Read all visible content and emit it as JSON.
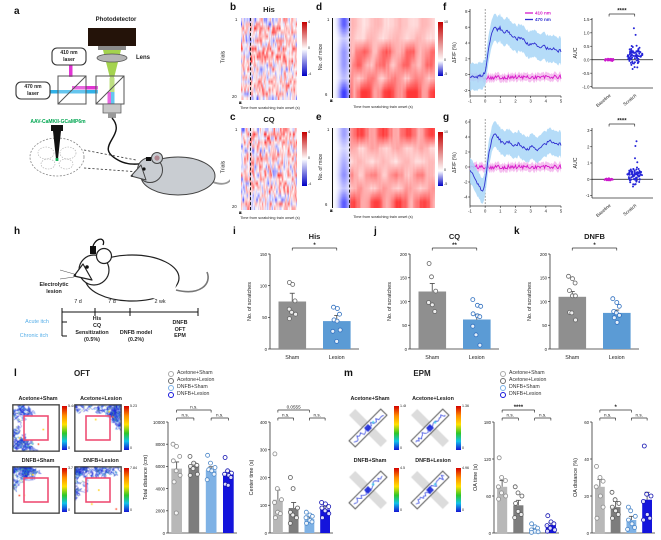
{
  "panels": {
    "a": "a",
    "b": "b",
    "c": "c",
    "d": "d",
    "e": "e",
    "f": "f",
    "g": "g",
    "h": "h",
    "i": "i",
    "j": "j",
    "k": "k",
    "l": "l",
    "m": "m"
  },
  "panel_a": {
    "photodetector": "Photodetector",
    "lens": "Lens",
    "laser410": "410 nm\nlaser",
    "laser470": "470 nm\nlaser",
    "virus": "AAV-CaMKII-GCaMP6m"
  },
  "panel_h": {
    "lesion_label": "Electrolytic\nlesion",
    "seg1": "7 d",
    "seg2": "7 d",
    "seg3": "2 wk",
    "acute": "Acute itch",
    "chronic": "Chronic itch",
    "acute_treatments": "His\nCQ",
    "sensitization": "Sensitization\n(0.5%)",
    "dnfb_model": "DNFB model\n(0.2%)",
    "endpoint": "DNFB\nOFT\nEPM"
  },
  "section_titles": {
    "oft": "OFT",
    "epm": "EPM"
  },
  "legend_groups": [
    {
      "label": "Acetone+Sham",
      "color": "#a9a9a9"
    },
    {
      "label": "Acetone+Lesion",
      "color": "#6f6f6f"
    },
    {
      "label": "DNFB+Sham",
      "color": "#79b1e8"
    },
    {
      "label": "DNFB+Lesion",
      "color": "#1616dc"
    }
  ],
  "track_images": {
    "oft": {
      "labels": [
        "Acetone+Sham",
        "Acetone+Lesion",
        "DNFB+Sham",
        "DNFB+Lesion"
      ],
      "cb_max": [
        "5.44",
        "5.23",
        "3.7",
        "7.84"
      ],
      "cb_min": "0"
    },
    "epm": {
      "labels": [
        "Acetone+Sham",
        "Acetone+Lesion",
        "DNFB+Sham",
        "DNFB+Lesion"
      ],
      "cb_max": [
        "1.46",
        "1.36",
        "4.5",
        "4.96"
      ],
      "cb_min": "0"
    }
  },
  "chart_data": [
    {
      "id": "panel_b",
      "type": "heatmap",
      "subtype": "trials",
      "title": "His",
      "rows": 20,
      "cols": 90,
      "seed": 7,
      "ylabel": "Trials",
      "ytick_top": "1",
      "ytick_bottom": "20",
      "xticks": [
        -1,
        0,
        1,
        2,
        3,
        4,
        5
      ],
      "xlabel": "Time from scratching train onset (s)",
      "colorbar": {
        "max": "4",
        "mid": "0",
        "min": "-4"
      }
    },
    {
      "id": "panel_c",
      "type": "heatmap",
      "subtype": "trials",
      "title": "CQ",
      "rows": 20,
      "cols": 90,
      "seed": 13,
      "ylabel": "Trials",
      "ytick_top": "1",
      "ytick_bottom": "20",
      "xticks": [
        -1,
        0,
        1,
        2,
        3,
        4,
        5
      ],
      "xlabel": "Time from scratching train onset (s)",
      "colorbar": {
        "max": "4",
        "mid": "0",
        "min": "-4"
      }
    },
    {
      "id": "panel_d",
      "type": "heatmap",
      "subtype": "mice",
      "rows": 6,
      "cols": 60,
      "seed": 3,
      "ylabel": "No. of mice",
      "ytick_top": "1",
      "ytick_bottom": "6",
      "xticks": [
        -1,
        0,
        1,
        2,
        3,
        4,
        5
      ],
      "xlabel": "Time from scratching train onset (s)",
      "colorbar": {
        "max": "10",
        "mid": "0",
        "min": "-5"
      }
    },
    {
      "id": "panel_e",
      "type": "heatmap",
      "subtype": "mice",
      "rows": 6,
      "cols": 60,
      "seed": 9,
      "ylabel": "No. of mice",
      "ytick_top": "1",
      "ytick_bottom": "6",
      "xticks": [
        -1,
        0,
        1,
        2,
        3,
        4,
        5
      ],
      "xlabel": "Time from scratching train onset (s)",
      "colorbar": {
        "max": "10",
        "mid": "0",
        "min": "-5"
      }
    },
    {
      "id": "panel_f_trace",
      "type": "line",
      "ylabel": "ΔF/F (%)",
      "xlim": [
        -1,
        5
      ],
      "ylim": [
        -2.7,
        8.3
      ],
      "yticks": [
        -2,
        0,
        2,
        4,
        6,
        8
      ],
      "xticks": [
        -1,
        0,
        1,
        2,
        3,
        4,
        5
      ],
      "legend": true,
      "vline": 0,
      "series": [
        {
          "name": "410 nm",
          "color": "#d619c9",
          "band": "#f3b4ec",
          "band_w": 0.5,
          "noise": 0.5,
          "keypoints": [
            [
              -1,
              -0.35
            ],
            [
              5,
              -0.3
            ]
          ]
        },
        {
          "name": "470 nm",
          "color": "#2f2fd0",
          "band": "#a8d6f7",
          "band_w": 1.7,
          "noise": 0.38,
          "keypoints": [
            [
              -1,
              -0.3
            ],
            [
              -0.5,
              -0.25
            ],
            [
              -0.2,
              -0.1
            ],
            [
              0,
              0.3
            ],
            [
              0.2,
              2.8
            ],
            [
              0.4,
              5.2
            ],
            [
              0.6,
              6.0
            ],
            [
              0.8,
              5.7
            ],
            [
              1.0,
              5.9
            ],
            [
              1.2,
              5.3
            ],
            [
              1.5,
              5.5
            ],
            [
              1.8,
              4.9
            ],
            [
              2.1,
              4.5
            ],
            [
              2.4,
              4.7
            ],
            [
              2.7,
              4.1
            ],
            [
              3.0,
              3.7
            ],
            [
              3.3,
              3.9
            ],
            [
              3.6,
              3.4
            ],
            [
              3.9,
              3.6
            ],
            [
              4.2,
              3.1
            ],
            [
              4.5,
              3.4
            ],
            [
              4.8,
              3.0
            ],
            [
              5,
              3.0
            ]
          ]
        }
      ]
    },
    {
      "id": "panel_f_auc",
      "type": "cat_scatter",
      "ylabel": "AUC",
      "ylim": [
        -1.05,
        1.55
      ],
      "yticks": [
        "-1.0",
        "-0.5",
        "0.0",
        "0.5",
        "1.0",
        "1.5"
      ],
      "categories": [
        "Baseline",
        "Scratch"
      ],
      "sig": "****",
      "baseline_sd": 0.035,
      "center": 0.18,
      "sd": 0.2,
      "tail": 1.05,
      "neg": 0.55,
      "seed": 11,
      "colors": {
        "baseline": "#cc18cc",
        "scratch": "#2424d8"
      }
    },
    {
      "id": "panel_g_trace",
      "type": "line",
      "ylabel": "ΔF/F (%)",
      "xlim": [
        -1,
        5
      ],
      "ylim": [
        -5.2,
        6.4
      ],
      "yticks": [
        -4,
        -2,
        0,
        2,
        4,
        6
      ],
      "xticks": [
        -1,
        0,
        1,
        2,
        3,
        4,
        5
      ],
      "legend": false,
      "vline": 0,
      "series": [
        {
          "name": "410 nm",
          "color": "#d619c9",
          "band": "#f3b4ec",
          "band_w": 0.55,
          "noise": 0.55,
          "keypoints": [
            [
              -1,
              0
            ],
            [
              5,
              0
            ]
          ]
        },
        {
          "name": "470 nm",
          "color": "#2f2fd0",
          "band": "#a8d6f7",
          "band_w": 1.7,
          "noise": 0.38,
          "keypoints": [
            [
              -1,
              -0.4
            ],
            [
              -0.7,
              -1.4
            ],
            [
              -0.45,
              -2.4
            ],
            [
              -0.25,
              -3.1
            ],
            [
              -0.1,
              -3.0
            ],
            [
              0.05,
              -1.2
            ],
            [
              0.25,
              1.8
            ],
            [
              0.45,
              3.9
            ],
            [
              0.6,
              4.4
            ],
            [
              0.8,
              4.1
            ],
            [
              1.0,
              3.5
            ],
            [
              1.3,
              3.1
            ],
            [
              1.6,
              3.4
            ],
            [
              1.9,
              2.8
            ],
            [
              2.2,
              3.1
            ],
            [
              2.5,
              2.6
            ],
            [
              2.8,
              2.4
            ],
            [
              3.1,
              2.7
            ],
            [
              3.4,
              2.2
            ],
            [
              3.7,
              2.7
            ],
            [
              4.0,
              3.1
            ],
            [
              4.3,
              3.5
            ],
            [
              4.6,
              3.2
            ],
            [
              5,
              3.0
            ]
          ]
        }
      ]
    },
    {
      "id": "panel_g_auc",
      "type": "cat_scatter",
      "ylabel": "AUC",
      "ylim": [
        -1.15,
        3.15
      ],
      "yticks": [
        "-1",
        "0",
        "1",
        "2",
        "3"
      ],
      "categories": [
        "Baseline",
        "Scratch"
      ],
      "sig": "****",
      "baseline_sd": 0.05,
      "center": 0.25,
      "sd": 0.28,
      "tail": 2.3,
      "neg": 0.45,
      "seed": 29,
      "colors": {
        "baseline": "#cc18cc",
        "scratch": "#2424d8"
      }
    },
    {
      "id": "panel_i",
      "type": "bar",
      "title": "His",
      "ylabel": "No. of scratches",
      "ylim": [
        0,
        150
      ],
      "yticks": [
        0,
        50,
        100,
        150
      ],
      "categories": [
        "Sham",
        "Lesion"
      ],
      "xcats": true,
      "seed": 5,
      "values": [
        75,
        44
      ],
      "sem": [
        13,
        9
      ],
      "points": [
        [
          105,
          102,
          76,
          63,
          58,
          55,
          48
        ],
        [
          66,
          64,
          55,
          46,
          44,
          30,
          28,
          12
        ]
      ],
      "colors": [
        "#8f8f8f",
        "#5b9bd5"
      ],
      "point_colors": [
        "#666666",
        "#2f6fbf"
      ],
      "sig": [
        {
          "a": 0,
          "b": 1,
          "label": "*",
          "y": 18
        }
      ]
    },
    {
      "id": "panel_j",
      "type": "bar",
      "title": "CQ",
      "ylabel": "No. of scratches",
      "ylim": [
        0,
        200
      ],
      "yticks": [
        0,
        50,
        100,
        150,
        200
      ],
      "categories": [
        "Sham",
        "Lesion"
      ],
      "xcats": true,
      "seed": 6,
      "values": [
        121,
        62
      ],
      "sem": [
        17,
        11
      ],
      "points": [
        [
          180,
          152,
          122,
          98,
          93,
          79
        ],
        [
          104,
          92,
          90,
          74,
          70,
          68,
          48,
          30,
          8
        ]
      ],
      "colors": [
        "#8f8f8f",
        "#5b9bd5"
      ],
      "point_colors": [
        "#666666",
        "#2f6fbf"
      ],
      "sig": [
        {
          "a": 0,
          "b": 1,
          "label": "**",
          "y": 18
        }
      ]
    },
    {
      "id": "panel_k",
      "type": "bar",
      "title": "DNFB",
      "ylabel": "No. of scratches",
      "ylim": [
        0,
        200
      ],
      "yticks": [
        0,
        50,
        100,
        150,
        200
      ],
      "categories": [
        "Sham",
        "Lesion"
      ],
      "xcats": true,
      "seed": 8,
      "values": [
        110,
        76
      ],
      "sem": [
        11,
        6
      ],
      "points": [
        [
          153,
          148,
          139,
          123,
          112,
          112,
          77,
          76,
          61
        ],
        [
          106,
          98,
          90,
          79,
          76,
          71,
          66,
          56
        ]
      ],
      "colors": [
        "#8f8f8f",
        "#5b9bd5"
      ],
      "point_colors": [
        "#666666",
        "#2f6fbf"
      ],
      "sig": [
        {
          "a": 0,
          "b": 1,
          "label": "*",
          "y": 18
        }
      ]
    },
    {
      "id": "panel_l_total",
      "type": "bar",
      "ylabel": "Total distance (cm)",
      "ylim": [
        0,
        10000
      ],
      "yticks": [
        0,
        2000,
        4000,
        6000,
        8000,
        10000
      ],
      "xcats": false,
      "seed": 15,
      "values": [
        5800,
        6050,
        5650,
        5300
      ],
      "sem": [
        600,
        280,
        320,
        300
      ],
      "points": [
        [
          8000,
          7800,
          6900,
          6500,
          5600,
          5200,
          4600,
          1800
        ],
        [
          6900,
          6300,
          6100,
          6000,
          5800,
          5300,
          5200
        ],
        [
          7000,
          6300,
          5900,
          5700,
          5600,
          5300,
          4800
        ],
        [
          6800,
          5600,
          5400,
          5300,
          5200,
          5000,
          4400,
          4300
        ]
      ],
      "colors": [
        "#b8b8b8",
        "#7d7d7d",
        "#7fb2e5",
        "#1414dc"
      ],
      "point_colors": [
        "#8a8a8a",
        "#5a5a5a",
        "#4a86c8",
        "#0f0fb0"
      ],
      "sig": [
        {
          "a": 0,
          "b": 1,
          "label": "n.s.",
          "y": 16
        },
        {
          "a": 0,
          "b": 2,
          "label": "n.s.",
          "y": 8
        },
        {
          "a": 2,
          "b": 3,
          "label": "n.s.",
          "y": 16
        }
      ]
    },
    {
      "id": "panel_l_center",
      "type": "bar",
      "ylabel": "Center time (s)",
      "ylim": [
        0,
        400
      ],
      "yticks": [
        0,
        100,
        200,
        300,
        400
      ],
      "xcats": false,
      "seed": 16,
      "values": [
        120,
        90,
        50,
        85
      ],
      "sem": [
        35,
        20,
        8,
        12
      ],
      "points": [
        [
          285,
          160,
          120,
          110,
          75,
          70,
          55
        ],
        [
          200,
          160,
          90,
          75,
          65,
          55,
          35
        ],
        [
          75,
          65,
          60,
          55,
          45,
          40,
          35
        ],
        [
          110,
          105,
          95,
          90,
          80,
          70,
          55
        ]
      ],
      "colors": [
        "#b8b8b8",
        "#7d7d7d",
        "#7fb2e5",
        "#1414dc"
      ],
      "point_colors": [
        "#8a8a8a",
        "#5a5a5a",
        "#4a86c8",
        "#0f0fb0"
      ],
      "sig": [
        {
          "a": 0,
          "b": 1,
          "label": "n.s.",
          "y": 16
        },
        {
          "a": 0,
          "b": 2,
          "label": "0.0555",
          "y": 8
        },
        {
          "a": 2,
          "b": 3,
          "label": "n.s.",
          "y": 16
        }
      ]
    },
    {
      "id": "panel_m_oatime",
      "type": "bar",
      "ylabel": "OA time (s)",
      "ylim": [
        0,
        180
      ],
      "yticks": [
        0,
        60,
        120,
        180
      ],
      "xcats": false,
      "seed": 17,
      "values": [
        75,
        45,
        5,
        13
      ],
      "sem": [
        10,
        8,
        2,
        4
      ],
      "points": [
        [
          122,
          90,
          85,
          75,
          65,
          60,
          55
        ],
        [
          75,
          65,
          60,
          48,
          35,
          30,
          25
        ],
        [
          15,
          10,
          8,
          5,
          3,
          2,
          1
        ],
        [
          28,
          18,
          15,
          12,
          8,
          5,
          3
        ]
      ],
      "colors": [
        "#b8b8b8",
        "#7d7d7d",
        "#7fb2e5",
        "#1414dc"
      ],
      "point_colors": [
        "#8a8a8a",
        "#5a5a5a",
        "#4a86c8",
        "#0f0fb0"
      ],
      "sig": [
        {
          "a": 0,
          "b": 1,
          "label": "n.s.",
          "y": 16
        },
        {
          "a": 0,
          "b": 2,
          "label": "****",
          "y": 8
        },
        {
          "a": 2,
          "b": 3,
          "label": "n.s.",
          "y": 16
        }
      ]
    },
    {
      "id": "panel_m_oadist",
      "type": "bar",
      "ylabel": "OA distance (%)",
      "ylim": [
        0,
        60
      ],
      "yticks": [
        0,
        20,
        40,
        60
      ],
      "xcats": false,
      "seed": 18,
      "values": [
        25,
        14,
        7,
        18
      ],
      "sem": [
        4,
        3,
        2,
        4
      ],
      "points": [
        [
          36,
          30,
          28,
          25,
          20,
          14,
          8
        ],
        [
          22,
          18,
          16,
          14,
          12,
          10,
          8
        ],
        [
          14,
          12,
          9,
          7,
          5,
          3,
          2
        ],
        [
          47,
          21,
          20,
          17,
          10,
          8,
          7
        ]
      ],
      "colors": [
        "#b8b8b8",
        "#7d7d7d",
        "#7fb2e5",
        "#1414dc"
      ],
      "point_colors": [
        "#8a8a8a",
        "#5a5a5a",
        "#4a86c8",
        "#0f0fb0"
      ],
      "sig": [
        {
          "a": 0,
          "b": 1,
          "label": "n.s.",
          "y": 16
        },
        {
          "a": 0,
          "b": 2,
          "label": "*",
          "y": 8
        },
        {
          "a": 2,
          "b": 3,
          "label": "n.s.",
          "y": 16
        }
      ]
    }
  ]
}
